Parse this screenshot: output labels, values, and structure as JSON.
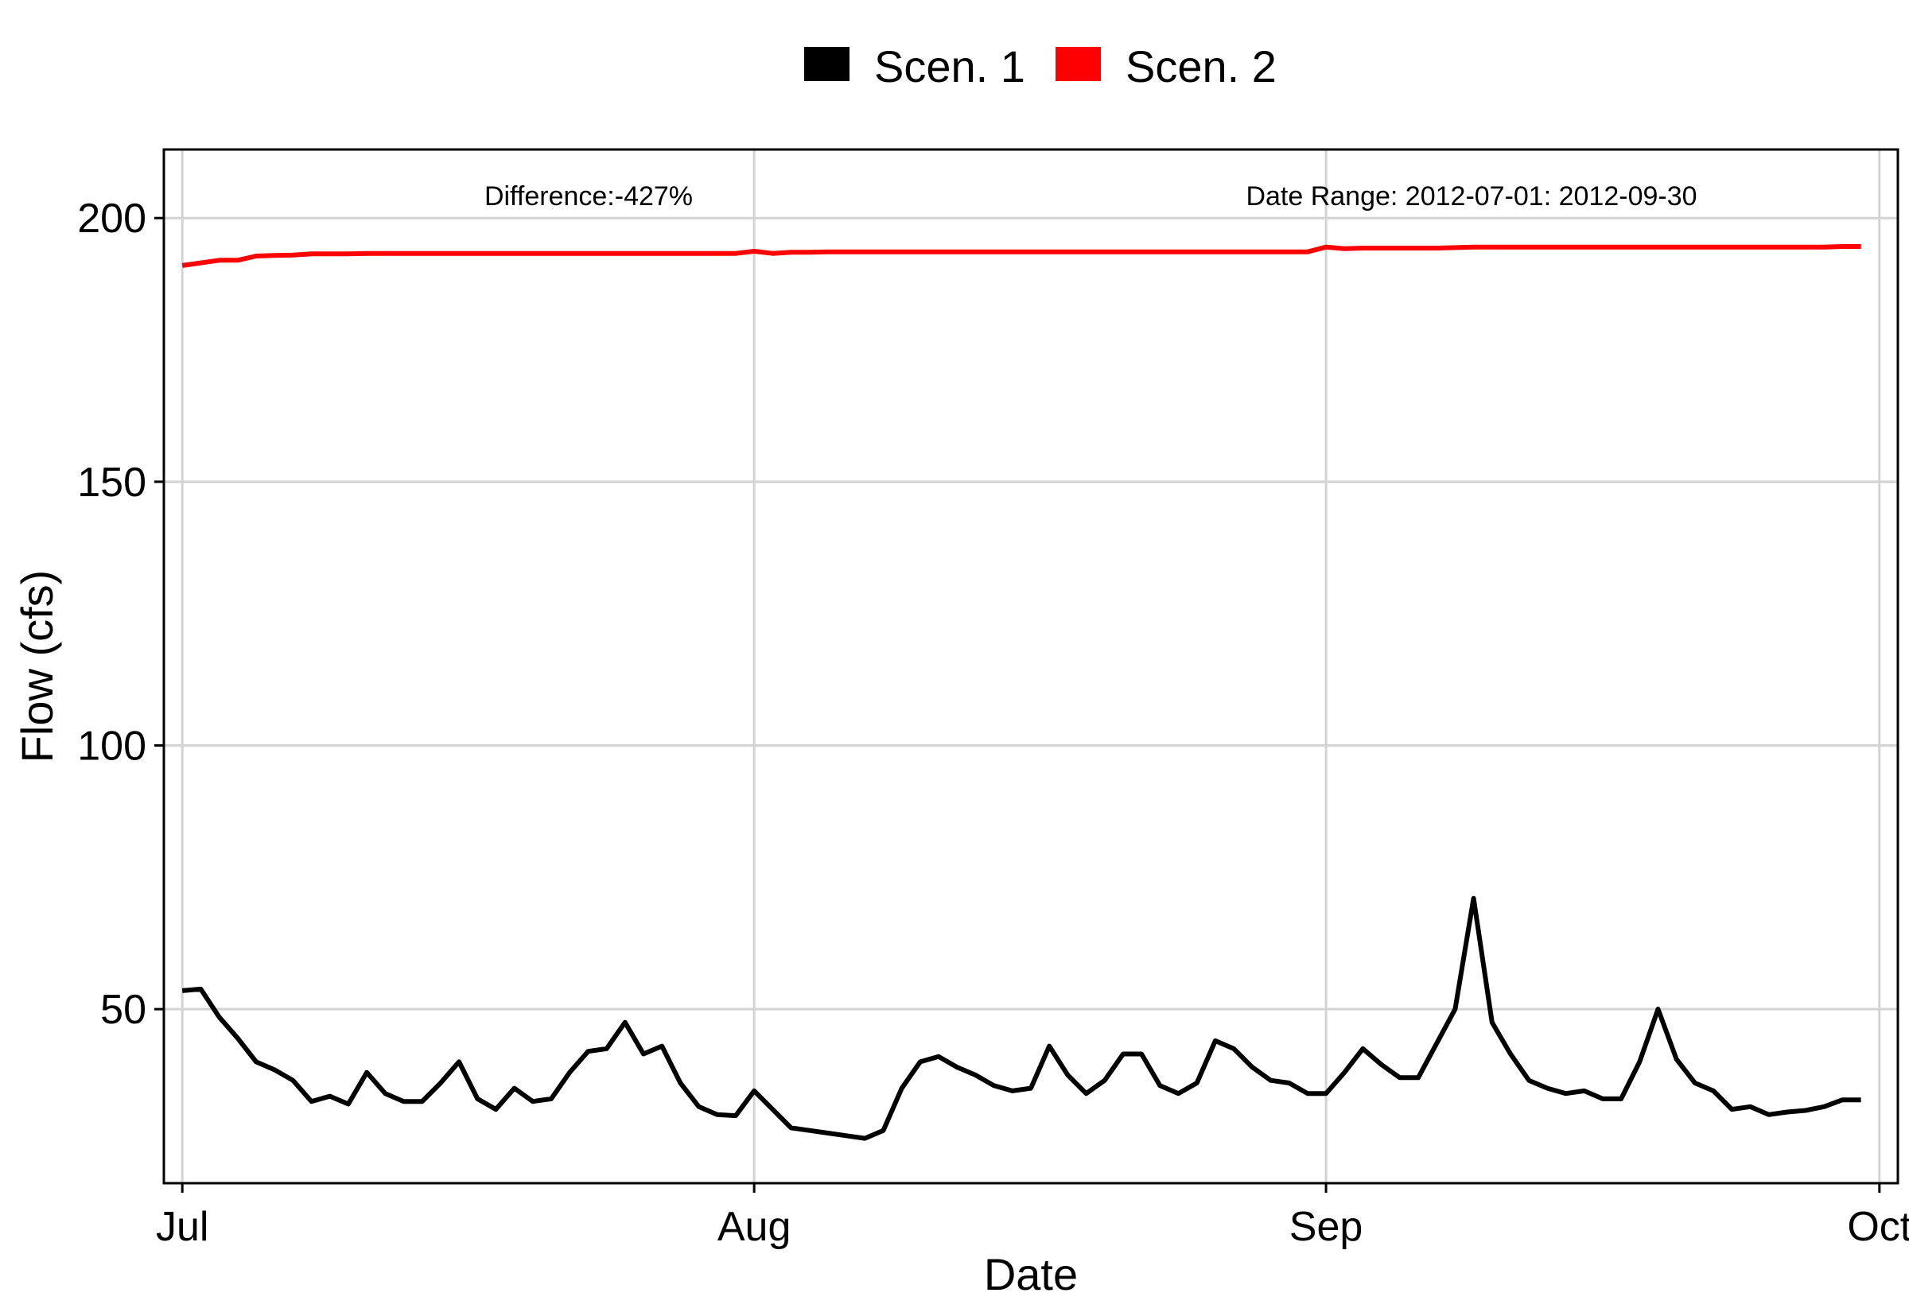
{
  "chart_data": {
    "type": "line",
    "title": "",
    "xlabel": "Date",
    "ylabel": "Flow (cfs)",
    "x_range": [
      "2012-06-30",
      "2012-10-02"
    ],
    "ylim": [
      17,
      213
    ],
    "x_ticks": [
      {
        "date": "2012-07-01",
        "label": "Jul"
      },
      {
        "date": "2012-08-01",
        "label": "Aug"
      },
      {
        "date": "2012-09-01",
        "label": "Sep"
      },
      {
        "date": "2012-10-01",
        "label": "Oct"
      }
    ],
    "y_ticks": [
      50,
      100,
      150,
      200
    ],
    "grid": true,
    "legend": {
      "placement": "top",
      "entries": [
        {
          "label": "Scen. 1",
          "color": "#000000"
        },
        {
          "label": "Scen. 2",
          "color": "#ff0000"
        }
      ]
    },
    "annotations": [
      {
        "text": "Difference:-427%"
      },
      {
        "text": "Date Range: 2012-07-01: 2012-09-30"
      }
    ],
    "series": [
      {
        "name": "Scen. 1",
        "color": "#000000",
        "start_date": "2012-07-01",
        "values": [
          53.5,
          53.8,
          48.5,
          44.5,
          40.0,
          38.5,
          36.5,
          32.5,
          33.5,
          32.0,
          38.0,
          34.0,
          32.5,
          32.5,
          36.0,
          40.0,
          33.0,
          31.0,
          35.0,
          32.5,
          33.0,
          38.0,
          42.0,
          42.5,
          47.5,
          41.5,
          43.0,
          36.0,
          31.5,
          30.0,
          29.8,
          34.5,
          31.0,
          27.5,
          27.0,
          26.5,
          26.0,
          25.5,
          27.0,
          35.0,
          40.0,
          41.0,
          39.0,
          37.5,
          35.5,
          34.5,
          35.0,
          43.0,
          37.5,
          34.0,
          36.5,
          41.5,
          41.5,
          35.5,
          34.0,
          36.0,
          44.0,
          42.5,
          39.0,
          36.5,
          36.0,
          34.0,
          34.0,
          38.0,
          42.5,
          39.5,
          37.0,
          37.0,
          43.5,
          50.0,
          71.0,
          47.5,
          41.5,
          36.5,
          35.0,
          34.0,
          34.5,
          33.0,
          33.0,
          40.0,
          50.0,
          40.5,
          36.0,
          34.5,
          31.0,
          31.5,
          30.0,
          30.5,
          30.8,
          31.5,
          32.8,
          32.8
        ]
      },
      {
        "name": "Scen. 2",
        "color": "#ff0000",
        "start_date": "2012-07-01",
        "values": [
          191.0,
          191.5,
          192.0,
          192.0,
          192.8,
          192.9,
          193.0,
          193.2,
          193.2,
          193.2,
          193.3,
          193.3,
          193.3,
          193.3,
          193.3,
          193.3,
          193.3,
          193.3,
          193.3,
          193.3,
          193.3,
          193.3,
          193.3,
          193.3,
          193.3,
          193.3,
          193.3,
          193.3,
          193.3,
          193.3,
          193.3,
          193.7,
          193.3,
          193.5,
          193.5,
          193.6,
          193.6,
          193.6,
          193.6,
          193.6,
          193.6,
          193.6,
          193.6,
          193.6,
          193.6,
          193.6,
          193.6,
          193.6,
          193.6,
          193.6,
          193.6,
          193.6,
          193.6,
          193.6,
          193.6,
          193.6,
          193.6,
          193.6,
          193.6,
          193.6,
          193.6,
          193.6,
          194.5,
          194.2,
          194.3,
          194.3,
          194.3,
          194.3,
          194.3,
          194.4,
          194.5,
          194.5,
          194.5,
          194.5,
          194.5,
          194.5,
          194.5,
          194.5,
          194.5,
          194.5,
          194.5,
          194.5,
          194.5,
          194.5,
          194.5,
          194.5,
          194.5,
          194.5,
          194.5,
          194.5,
          194.6,
          194.6
        ]
      }
    ]
  }
}
